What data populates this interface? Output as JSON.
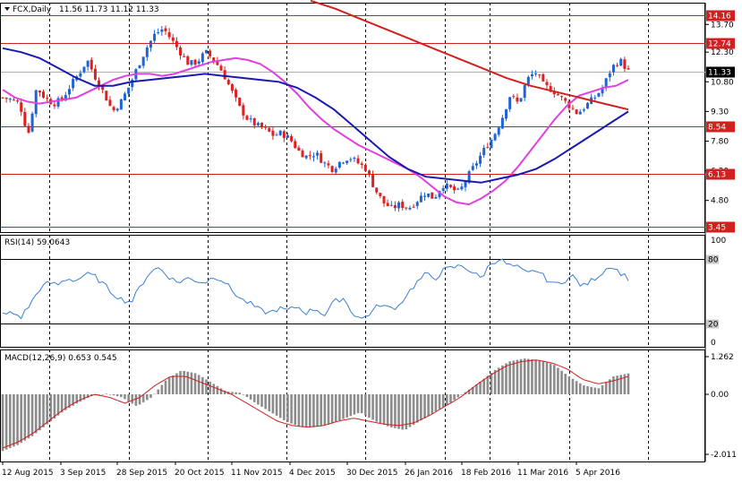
{
  "header": {
    "symbol": "FCX,Daily",
    "ohlc": "11.56 11.73 11.12 11.33"
  },
  "colors": {
    "background": "#ffffff",
    "bull_candle": "#1e64d6",
    "bear_candle": "#e02020",
    "ma_fast": "#e040e0",
    "ma_mid": "#1a1ab0",
    "ma_slow": "#d02020",
    "rsi_line": "#3a7fd5",
    "macd_hist": "#8c8c8c",
    "macd_signal": "#d02020",
    "hline": "#d02020",
    "grid": "#000000"
  },
  "price_panel": {
    "y_ticks": [
      13.7,
      12.3,
      10.8,
      9.3,
      7.8,
      6.3,
      4.8
    ],
    "ylim": [
      3.2,
      14.8
    ],
    "h_levels": [
      {
        "value": 14.16,
        "label": "14.16"
      },
      {
        "value": 12.74,
        "label": "12.74"
      },
      {
        "value": 8.54,
        "label": "8.54"
      },
      {
        "value": 6.13,
        "label": "6.13"
      },
      {
        "value": 3.45,
        "label": "3.45"
      }
    ],
    "current_price": {
      "value": 11.33,
      "label": "11.33"
    }
  },
  "rsi_panel": {
    "label": "RSI(14) 59.0643",
    "levels": [
      {
        "value": 80,
        "label": "80"
      },
      {
        "value": 20,
        "label": "20"
      }
    ],
    "scale": [
      {
        "value": 100,
        "label": "100"
      },
      {
        "value": 0,
        "label": "0"
      }
    ]
  },
  "macd_panel": {
    "label": "MACD(12,26,9) 0.653 0.545",
    "scale": [
      {
        "value": 1.262,
        "label": "1.262"
      },
      {
        "value": 0.0,
        "label": "0.00"
      },
      {
        "value": -2.011,
        "label": "-2.011"
      }
    ]
  },
  "x_labels": [
    "12 Aug 2015",
    "3 Sep 2015",
    "28 Sep 2015",
    "20 Oct 2015",
    "11 Nov 2015",
    "4 Dec 2015",
    "30 Dec 2015",
    "26 Jan 2016",
    "18 Feb 2016",
    "11 Mar 2016",
    "5 Apr 2016"
  ],
  "chart_data": {
    "type": "candlestick",
    "title": "FCX,Daily",
    "ylim": [
      3.2,
      14.8
    ],
    "x_labels": [
      "12 Aug 2015",
      "3 Sep 2015",
      "28 Sep 2015",
      "20 Oct 2015",
      "11 Nov 2015",
      "4 Dec 2015",
      "30 Dec 2015",
      "26 Jan 2016",
      "18 Feb 2016",
      "11 Mar 2016",
      "5 Apr 2016"
    ],
    "close_path": [
      10.0,
      9.9,
      9.7,
      8.1,
      10.5,
      10.0,
      9.7,
      9.9,
      10.6,
      11.2,
      11.9,
      11.0,
      10.2,
      9.3,
      9.8,
      10.6,
      11.6,
      12.5,
      13.2,
      13.5,
      12.9,
      12.3,
      11.7,
      11.8,
      12.3,
      11.9,
      11.3,
      10.4,
      9.5,
      8.9,
      8.6,
      8.4,
      8.1,
      8.2,
      7.9,
      7.3,
      7.0,
      7.2,
      6.7,
      6.4,
      6.8,
      7.0,
      6.7,
      6.4,
      5.4,
      4.7,
      4.4,
      4.6,
      4.4,
      4.8,
      5.2,
      4.9,
      5.6,
      5.4,
      5.2,
      6.0,
      6.7,
      7.4,
      8.0,
      8.9,
      10.1,
      9.7,
      10.9,
      11.3,
      10.6,
      10.4,
      10.0,
      9.6,
      9.2,
      9.6,
      10.0,
      10.5,
      11.5,
      11.9,
      11.33
    ],
    "series": [
      {
        "name": "MA fast",
        "values": [
          10.4,
          10.0,
          9.8,
          9.7,
          9.8,
          9.9,
          10.0,
          10.3,
          10.6,
          10.9,
          11.1,
          11.2,
          11.2,
          11.1,
          11.2,
          11.4,
          11.6,
          11.8,
          11.9,
          12.0,
          11.9,
          11.7,
          11.3,
          10.8,
          10.2,
          9.5,
          8.9,
          8.4,
          8.0,
          7.6,
          7.3,
          7.0,
          6.7,
          6.4,
          6.0,
          5.5,
          5.0,
          4.7,
          4.6,
          4.9,
          5.3,
          5.8,
          6.5,
          7.3,
          8.1,
          8.9,
          9.6,
          10.1,
          10.3,
          10.5,
          10.6,
          10.9
        ]
      },
      {
        "name": "MA mid",
        "values": [
          12.5,
          12.3,
          12.0,
          11.5,
          11.0,
          10.6,
          10.6,
          10.8,
          10.9,
          11.0,
          11.1,
          11.2,
          11.1,
          11.0,
          10.9,
          10.8,
          10.5,
          10.0,
          9.4,
          8.6,
          7.8,
          7.0,
          6.4,
          6.0,
          5.9,
          5.8,
          5.7,
          5.9,
          6.1,
          6.4,
          6.9,
          7.5,
          8.1,
          8.7,
          9.3
        ]
      },
      {
        "name": "MA slow",
        "values": [
          14.9,
          14.5,
          14.0,
          13.5,
          13.0,
          12.5,
          12.0,
          11.5,
          11.0,
          10.6,
          10.3,
          10.0,
          9.7,
          9.4
        ]
      }
    ]
  }
}
